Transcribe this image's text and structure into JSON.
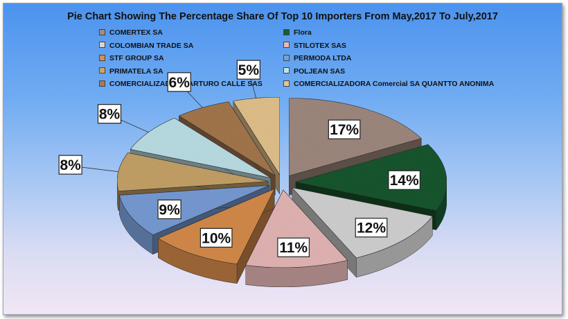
{
  "chart_data": {
    "type": "pie",
    "title": "Pie Chart Showing The Percentage Share Of Top 10 Importers From May,2017 To July,2017",
    "value_suffix": "%",
    "slices": [
      {
        "label": "COMERTEX SA",
        "value": 17,
        "color": "#a38c82"
      },
      {
        "label": "Flora",
        "value": 14,
        "color": "#1f5a32"
      },
      {
        "label": "COLOMBIAN TRADE SA",
        "value": 12,
        "color": "#d6d6d6"
      },
      {
        "label": "STILOTEX SAS",
        "value": 11,
        "color": "#e9b9b9"
      },
      {
        "label": "STF GROUP SA",
        "value": 10,
        "color": "#d98e4d"
      },
      {
        "label": "PERMODA LTDA",
        "value": 9,
        "color": "#7a9fd9"
      },
      {
        "label": "PRIMATELA SA",
        "value": 8,
        "color": "#c9a56a"
      },
      {
        "label": "POLJEAN SAS",
        "value": 8,
        "color": "#bfe3ea"
      },
      {
        "label": "COMERCIALIZADORA ARTURO CALLE SAS",
        "value": 6,
        "color": "#a87a50"
      },
      {
        "label": "COMERCIALIZADORA Comercial SA QUANTTO ANONIMA",
        "value": 5,
        "color": "#e7c690"
      }
    ],
    "legend_position": "top"
  }
}
